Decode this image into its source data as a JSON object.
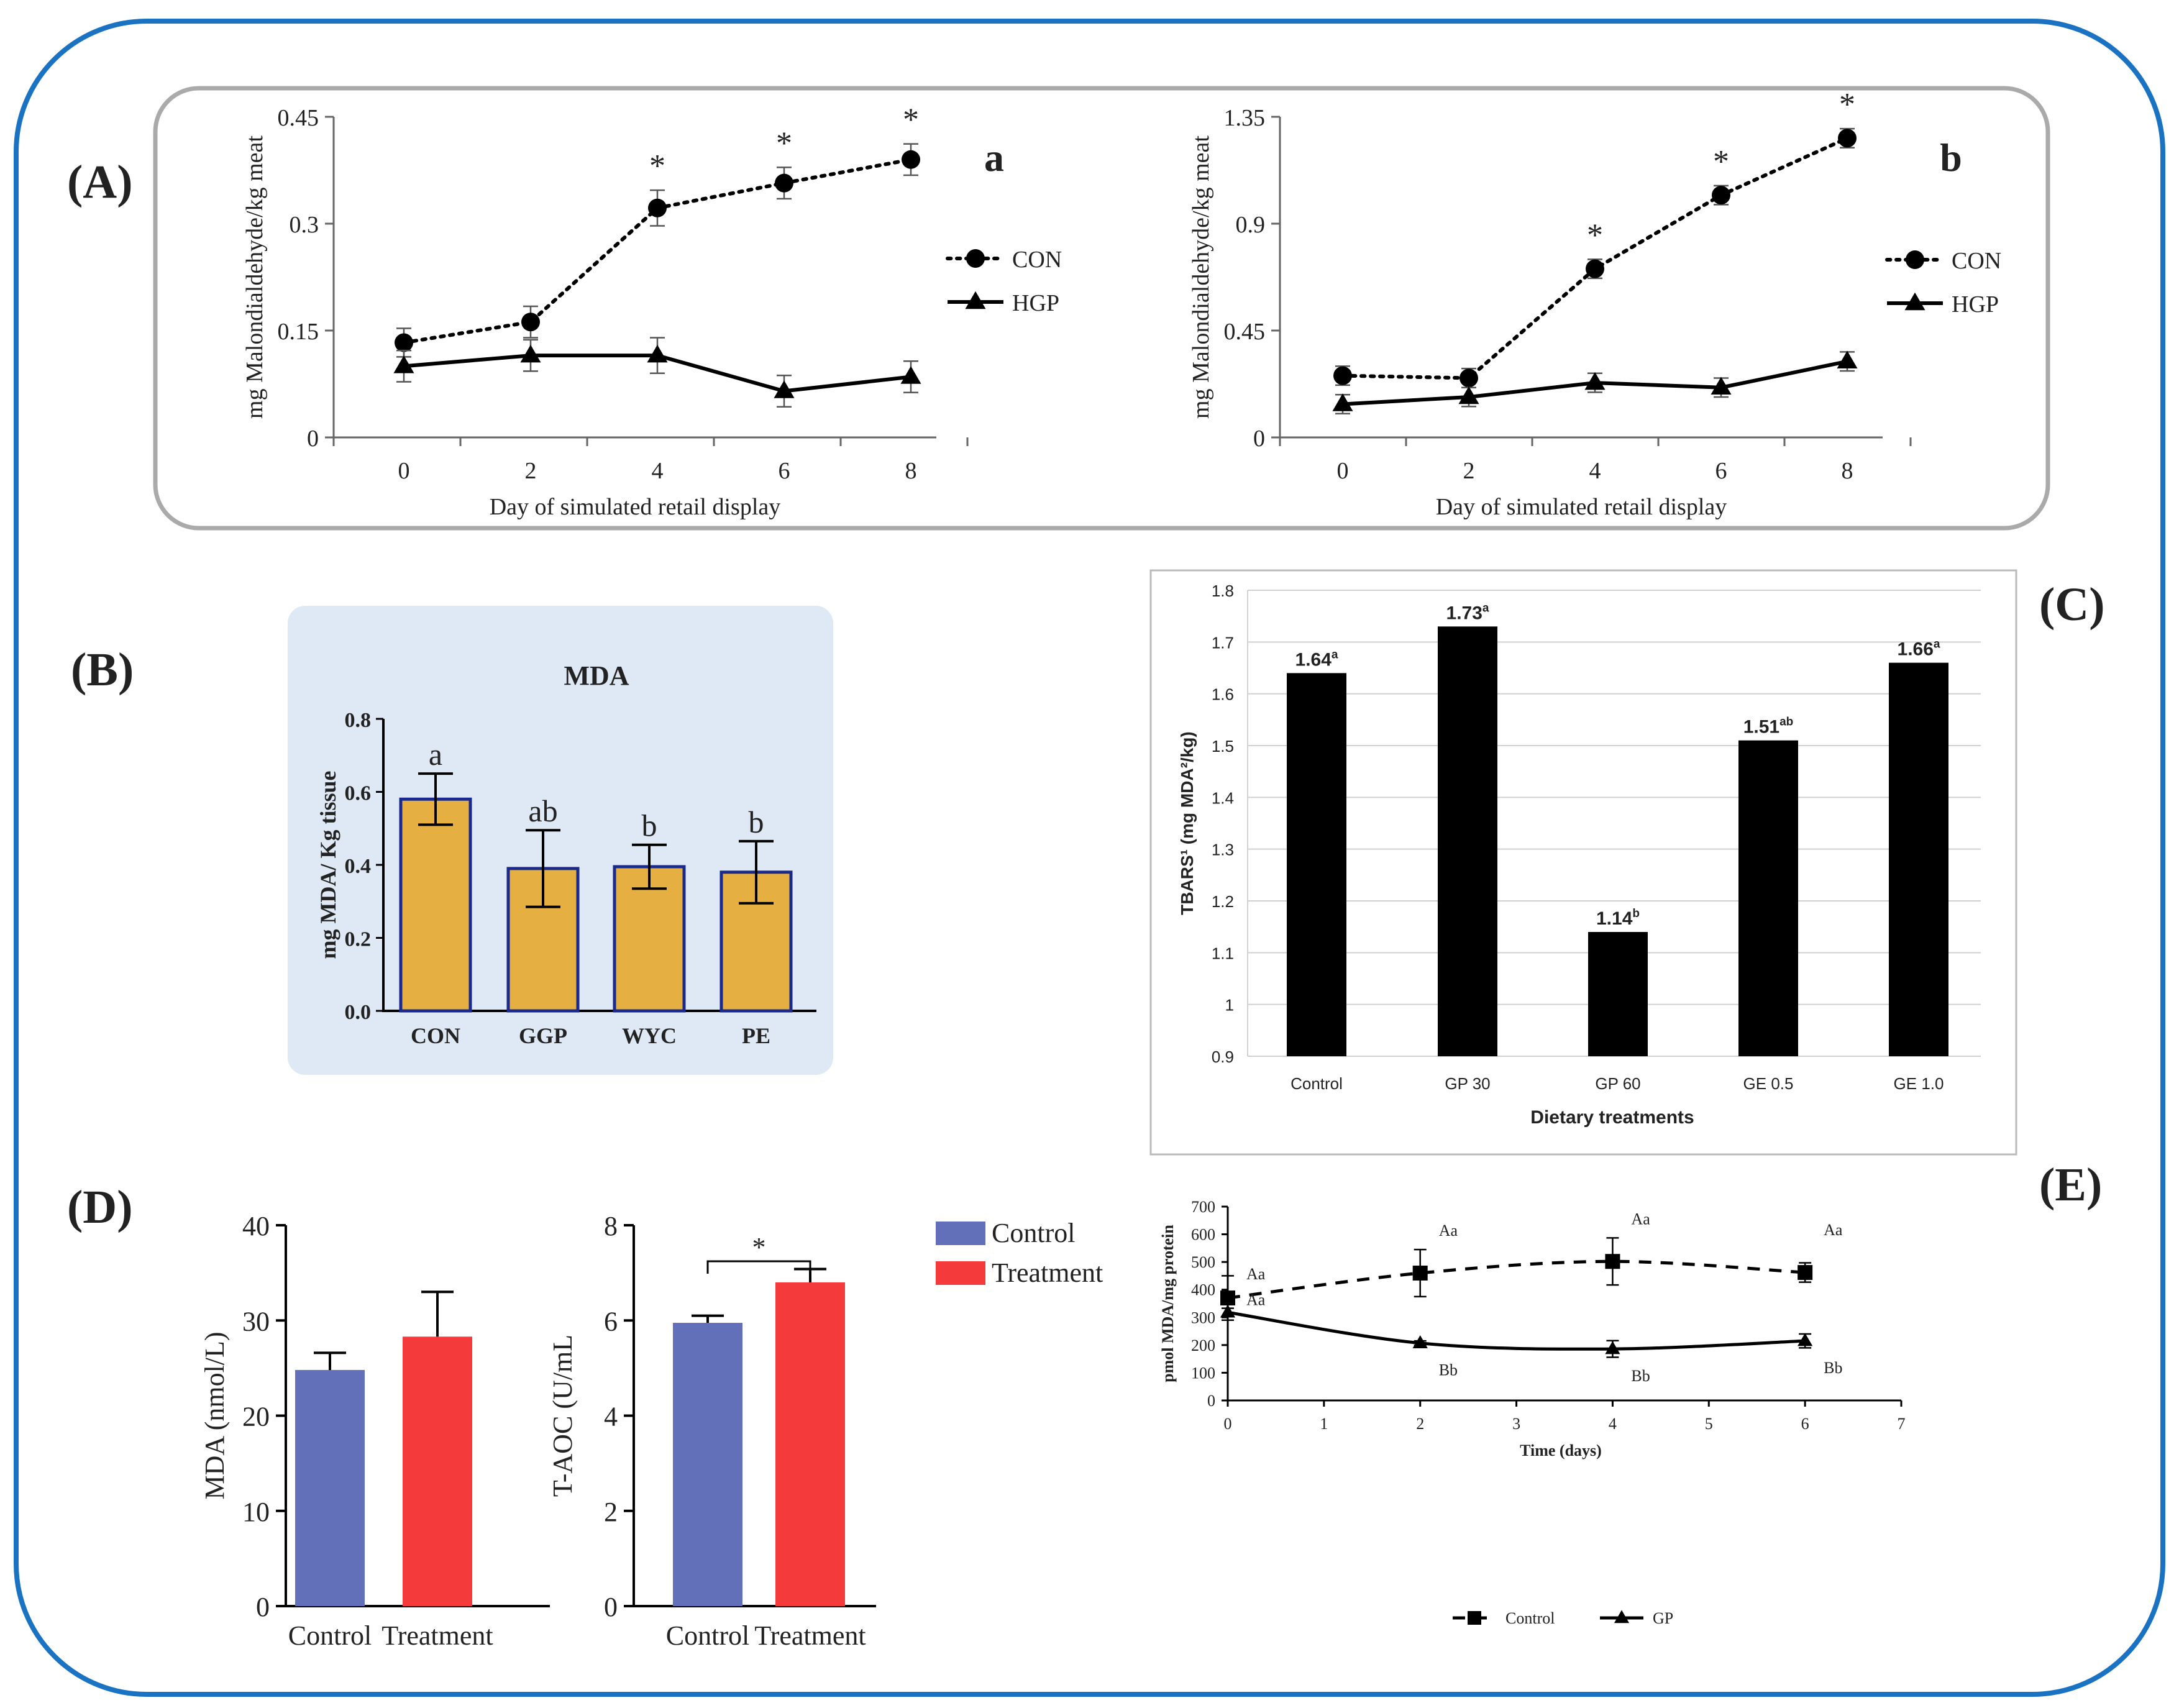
{
  "colors": {
    "frame_blue": "#1a73c2",
    "panel_gray": "#aaaaaa",
    "panel_b_bg": "#dfe9f5",
    "bar_orange": "#e5b041",
    "bar_orange_edge": "#1a2a8c",
    "bar_black": "#000000",
    "control_blue": "#6170b8",
    "treatment_red": "#f53a3b"
  },
  "labels": {
    "A": "(A)",
    "B": "(B)",
    "C": "(C)",
    "D": "(D)",
    "E": "(E)"
  },
  "chart_data": [
    {
      "id": "A-a",
      "type": "line",
      "tag": "a",
      "x": [
        0,
        2,
        4,
        6,
        8
      ],
      "x_ticks": [
        "0",
        "2",
        "4",
        "6",
        "8"
      ],
      "y_ticks": [
        "0",
        "0.15",
        "0.3",
        "0.45"
      ],
      "ylim": [
        0,
        0.45
      ],
      "xlabel": "Day of simulated retail display",
      "ylabel": "mg Malondialdehyde/kg meat",
      "series": [
        {
          "name": "CON",
          "style": "dotted",
          "marker": "circle",
          "values": [
            0.133,
            0.162,
            0.322,
            0.357,
            0.39
          ],
          "err": [
            0.02,
            0.022,
            0.025,
            0.022,
            0.022
          ]
        },
        {
          "name": "HGP",
          "style": "solid",
          "marker": "triangle",
          "values": [
            0.1,
            0.115,
            0.115,
            0.065,
            0.085
          ],
          "err": [
            0.022,
            0.022,
            0.025,
            0.022,
            0.022
          ]
        }
      ],
      "annotations": [
        {
          "x": 4,
          "text": "*"
        },
        {
          "x": 6,
          "text": "*"
        },
        {
          "x": 8,
          "text": "*"
        }
      ],
      "legend": "right"
    },
    {
      "id": "A-b",
      "type": "line",
      "tag": "b",
      "x": [
        0,
        2,
        4,
        6,
        8
      ],
      "x_ticks": [
        "0",
        "2",
        "4",
        "6",
        "8"
      ],
      "y_ticks": [
        "0",
        "0.45",
        "0.9",
        "1.35"
      ],
      "ylim": [
        0,
        1.35
      ],
      "xlabel": "Day of simulated retail display",
      "ylabel": "mg Malondialdehyde/kg meat",
      "series": [
        {
          "name": "CON",
          "style": "dotted",
          "marker": "circle",
          "values": [
            0.26,
            0.25,
            0.71,
            1.02,
            1.26
          ],
          "err": [
            0.04,
            0.04,
            0.04,
            0.04,
            0.04
          ]
        },
        {
          "name": "HGP",
          "style": "solid",
          "marker": "triangle",
          "values": [
            0.14,
            0.17,
            0.23,
            0.21,
            0.32
          ],
          "err": [
            0.04,
            0.04,
            0.04,
            0.04,
            0.04
          ]
        }
      ],
      "annotations": [
        {
          "x": 4,
          "text": "*"
        },
        {
          "x": 6,
          "text": "*"
        },
        {
          "x": 8,
          "text": "*"
        }
      ],
      "legend": "right"
    },
    {
      "id": "B",
      "type": "bar",
      "title": "MDA",
      "categories": [
        "CON",
        "GGP",
        "WYC",
        "PE"
      ],
      "values": [
        0.58,
        0.39,
        0.395,
        0.38
      ],
      "err": [
        0.07,
        0.105,
        0.06,
        0.085
      ],
      "letters": [
        "a",
        "ab",
        "b",
        "b"
      ],
      "y_ticks": [
        "0.0",
        "0.2",
        "0.4",
        "0.6",
        "0.8"
      ],
      "ylim": [
        0,
        0.8
      ],
      "ylabel": "mg MDA/ Kg tissue"
    },
    {
      "id": "C",
      "type": "bar",
      "categories": [
        "Control",
        "GP 30",
        "GP 60",
        "GE 0.5",
        "GE 1.0"
      ],
      "values": [
        1.64,
        1.73,
        1.14,
        1.51,
        1.66
      ],
      "value_labels": [
        "1.64",
        "1.73",
        "1.14",
        "1.51",
        "1.66"
      ],
      "letters": [
        "a",
        "a",
        "b",
        "ab",
        "a"
      ],
      "y_ticks": [
        "0.9",
        "1",
        "1.1",
        "1.2",
        "1.3",
        "1.4",
        "1.5",
        "1.6",
        "1.7",
        "1.8"
      ],
      "ylim": [
        0.9,
        1.8
      ],
      "xlabel": "Dietary treatments",
      "ylabel": "TBARS¹ (mg MDA²/kg)",
      "grid": true
    },
    {
      "id": "D-1",
      "type": "bar",
      "categories": [
        "Control",
        "Treatment"
      ],
      "values": [
        24.8,
        28.3
      ],
      "err": [
        1.8,
        4.7
      ],
      "y_ticks": [
        "0",
        "10",
        "20",
        "30",
        "40"
      ],
      "ylim": [
        0,
        40
      ],
      "ylabel": "MDA (nmol/L)"
    },
    {
      "id": "D-2",
      "type": "bar",
      "categories": [
        "Control",
        "Treatment"
      ],
      "values": [
        5.95,
        6.8
      ],
      "err": [
        0.15,
        0.28
      ],
      "y_ticks": [
        "0",
        "2",
        "4",
        "6",
        "8"
      ],
      "ylim": [
        0,
        8
      ],
      "ylabel": "T-AOC (U/mL",
      "significance": "*",
      "legend": [
        "Control",
        "Treatment"
      ]
    },
    {
      "id": "E",
      "type": "line",
      "x": [
        0,
        2,
        4,
        6
      ],
      "x_ticks": [
        "0",
        "1",
        "2",
        "3",
        "4",
        "5",
        "6",
        "7"
      ],
      "y_ticks": [
        "0",
        "100",
        "200",
        "300",
        "400",
        "500",
        "600",
        "700"
      ],
      "ylim": [
        0,
        700
      ],
      "xlim": [
        0,
        7
      ],
      "xlabel": "Time (days)",
      "ylabel": "pmol MDA/mg protein",
      "series": [
        {
          "name": "Control",
          "style": "dashed",
          "marker": "square",
          "values": [
            370,
            460,
            502,
            462
          ],
          "err": [
            80,
            85,
            85,
            35
          ],
          "letters": [
            "Aa",
            "Aa",
            "Aa",
            "Aa"
          ]
        },
        {
          "name": "GP",
          "style": "solid",
          "marker": "triangle",
          "values": [
            318,
            207,
            186,
            215
          ],
          "err": [
            15,
            8,
            30,
            25
          ],
          "letters": [
            "Aa",
            "Bb",
            "Bb",
            "Bb"
          ]
        }
      ],
      "legend": "bottom"
    }
  ]
}
